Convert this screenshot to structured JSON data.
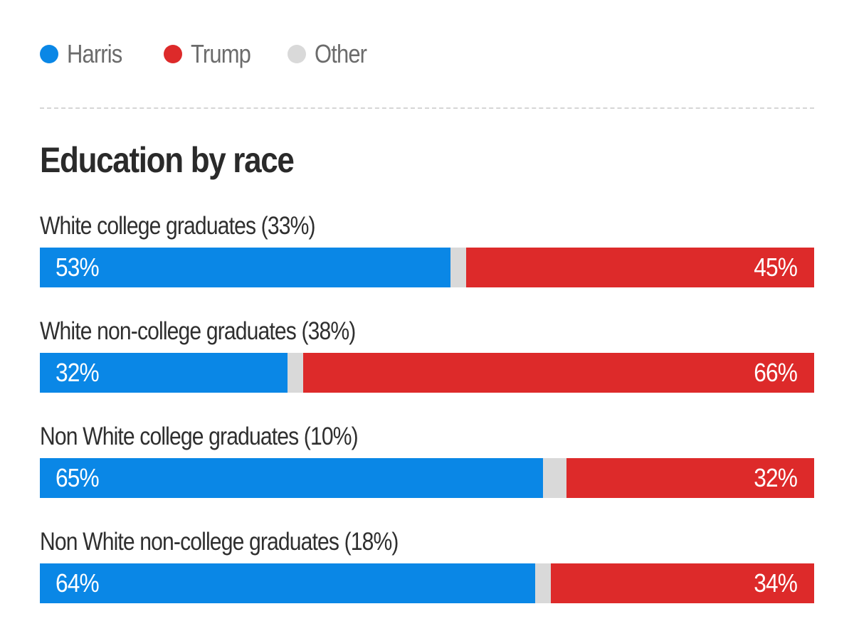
{
  "legend": [
    {
      "name": "Harris",
      "color": "#0a87e6"
    },
    {
      "name": "Trump",
      "color": "#dd2a2a"
    },
    {
      "name": "Other",
      "color": "#d9d9d9"
    }
  ],
  "chart_data": {
    "type": "bar",
    "orientation": "horizontal",
    "stacked": true,
    "title": "Education by race",
    "xlim": [
      0,
      100
    ],
    "grid": false,
    "legend_position": "top-left",
    "categories": [
      "White college graduates (33%)",
      "White non-college graduates (38%)",
      "Non White college graduates (10%)",
      "Non White non-college graduates (18%)"
    ],
    "series": [
      {
        "name": "Harris",
        "color": "#0a87e6",
        "values": [
          53,
          32,
          65,
          64
        ]
      },
      {
        "name": "Other",
        "color": "#d9d9d9",
        "values": [
          2,
          2,
          3,
          2
        ]
      },
      {
        "name": "Trump",
        "color": "#dd2a2a",
        "values": [
          45,
          66,
          32,
          34
        ]
      }
    ],
    "value_labels": {
      "Harris": [
        "53%",
        "32%",
        "65%",
        "64%"
      ],
      "Trump": [
        "45%",
        "66%",
        "32%",
        "34%"
      ]
    }
  }
}
